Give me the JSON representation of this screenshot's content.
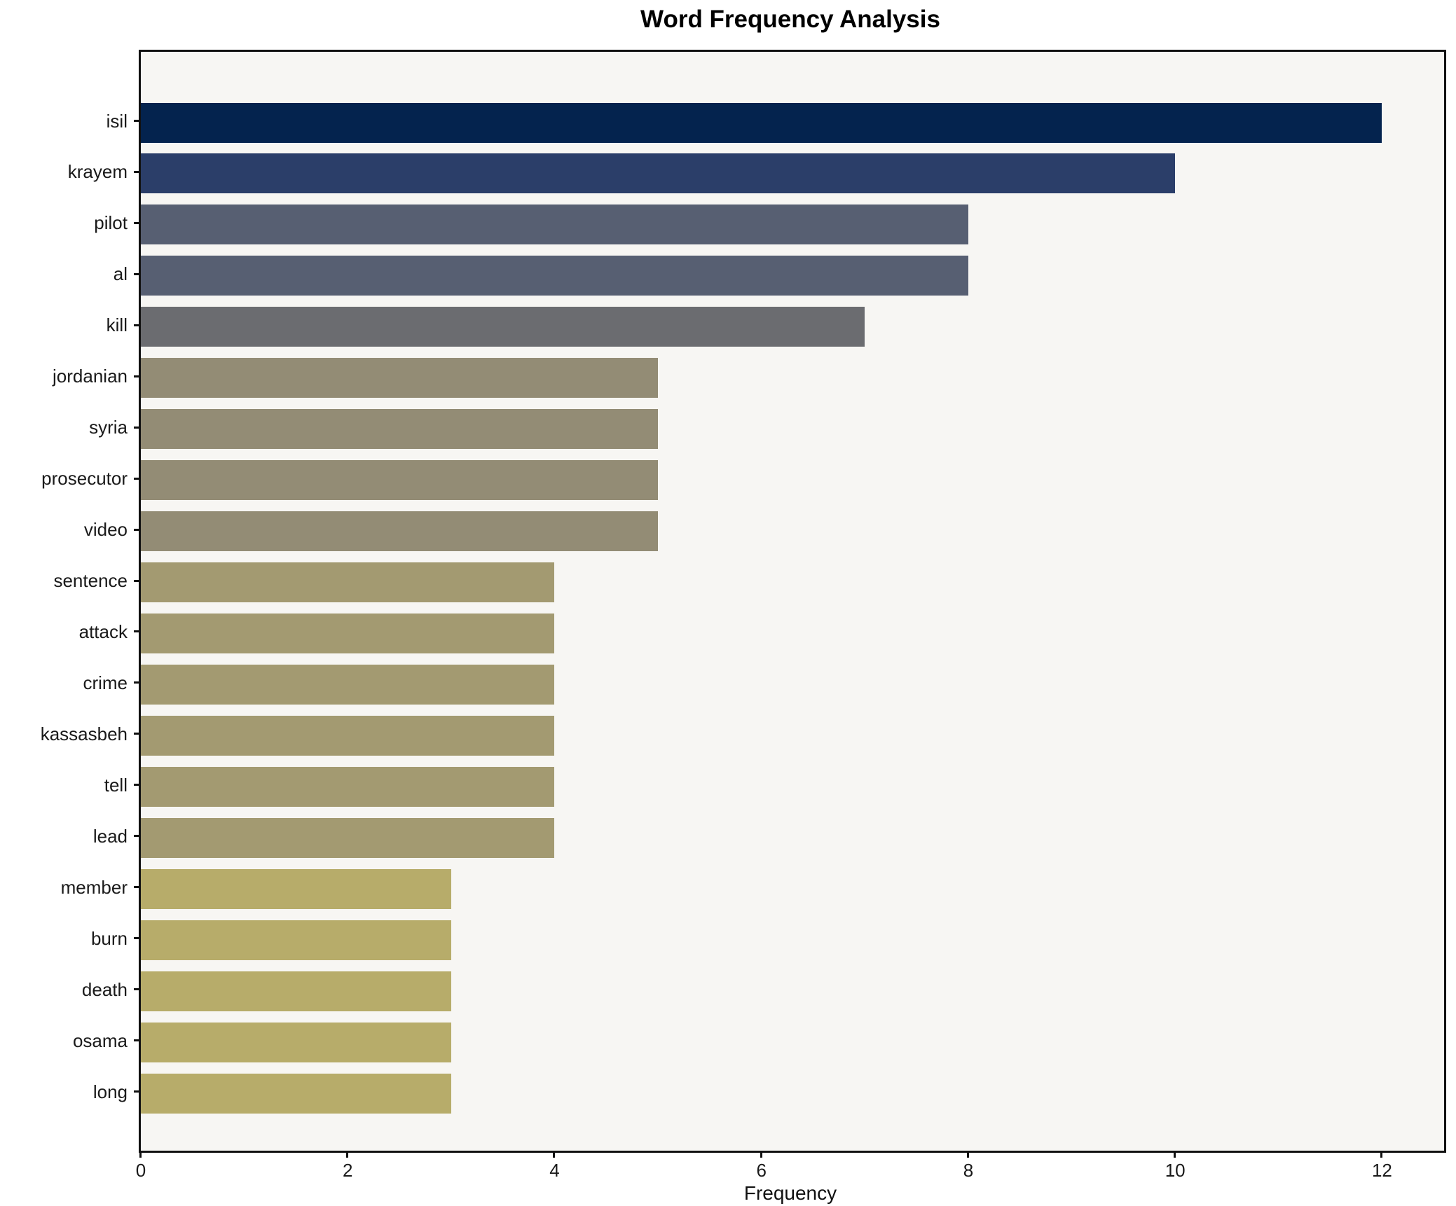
{
  "title": "Word Frequency Analysis",
  "chart_data": {
    "type": "bar",
    "orientation": "horizontal",
    "title": "Word Frequency Analysis",
    "xlabel": "Frequency",
    "ylabel": "",
    "categories": [
      "isil",
      "krayem",
      "pilot",
      "al",
      "kill",
      "jordanian",
      "syria",
      "prosecutor",
      "video",
      "sentence",
      "attack",
      "crime",
      "kassasbeh",
      "tell",
      "lead",
      "member",
      "burn",
      "death",
      "osama",
      "long"
    ],
    "values": [
      12,
      10,
      8,
      8,
      7,
      5,
      5,
      5,
      5,
      4,
      4,
      4,
      4,
      4,
      4,
      3,
      3,
      3,
      3,
      3
    ],
    "bar_colors": [
      "#04234e",
      "#2b3e69",
      "#575f72",
      "#575f72",
      "#6b6c70",
      "#938c75",
      "#938c75",
      "#938c75",
      "#938c75",
      "#a39a71",
      "#a39a71",
      "#a39a71",
      "#a39a71",
      "#a39a71",
      "#a39a71",
      "#b7ac6a",
      "#b7ac6a",
      "#b7ac6a",
      "#b7ac6a",
      "#b7ac6a"
    ],
    "xlim": [
      0,
      12.6
    ],
    "xticks": [
      0,
      2,
      4,
      6,
      8,
      10,
      12
    ],
    "grid": false,
    "legend": null,
    "colormap": "cividis",
    "plot_background": "#f7f6f3",
    "figure_background": "#ffffff",
    "spine_color": "#111111"
  }
}
